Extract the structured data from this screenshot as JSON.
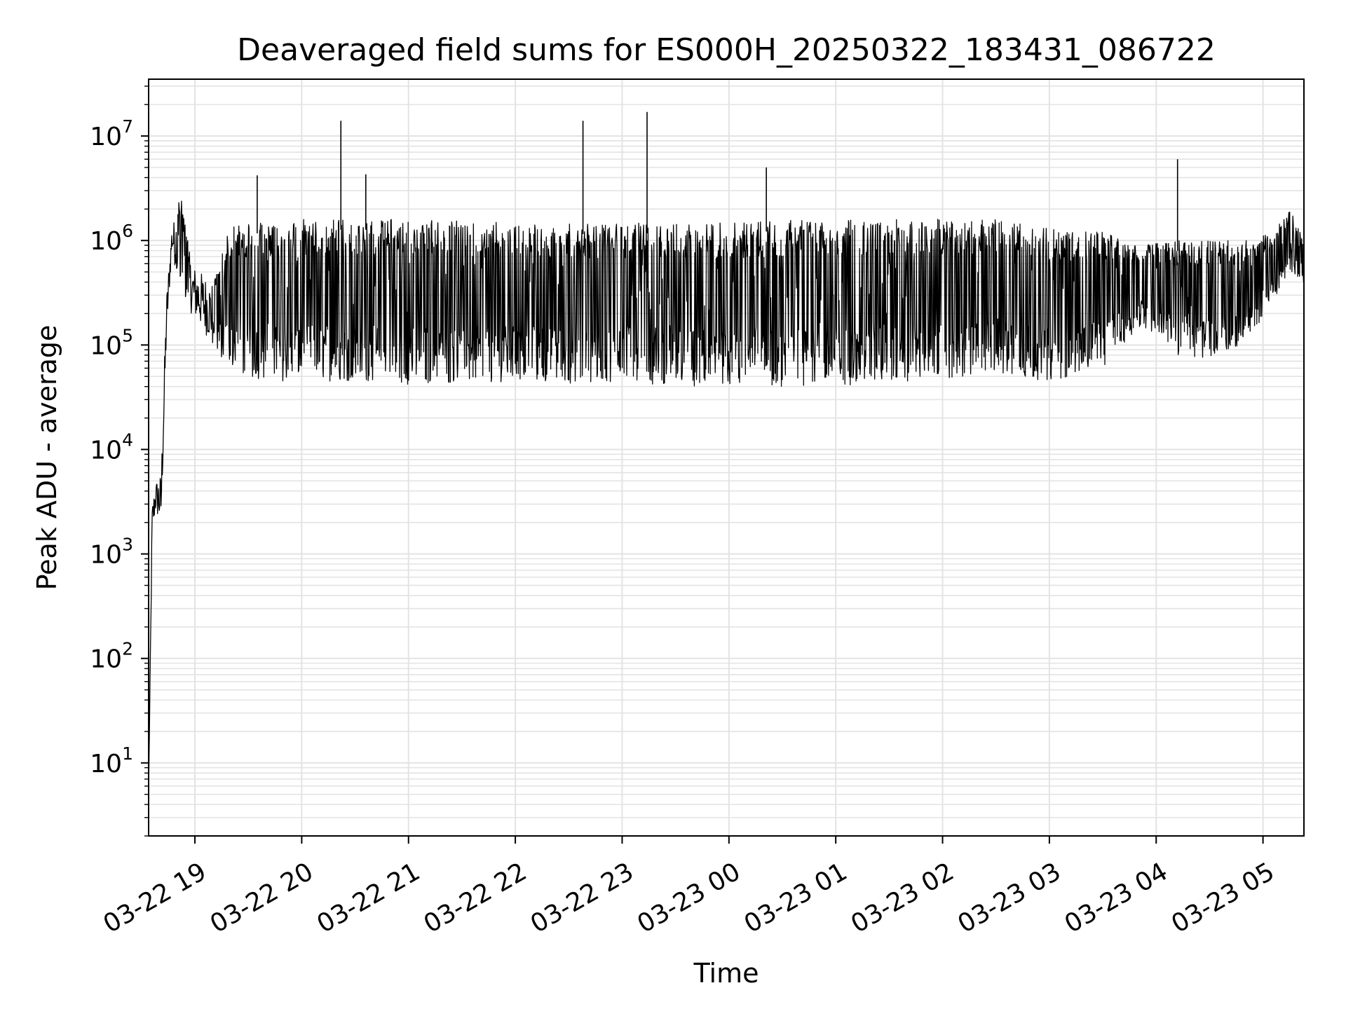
{
  "chart_data": {
    "type": "line",
    "title": "Deaveraged field sums for ES000H_20250322_183431_086722",
    "xlabel": "Time",
    "ylabel": "Peak ADU - average",
    "yscale": "log",
    "ylim": [
      2,
      35000000
    ],
    "xlim": [
      "2025-03-22 18:34",
      "2025-03-23 05:23"
    ],
    "grid": true,
    "line_color": "#000000",
    "grid_color": "#e3e3e3",
    "x_ticks": [
      {
        "t": "2025-03-22 19:00",
        "label": "03-22 19"
      },
      {
        "t": "2025-03-22 20:00",
        "label": "03-22 20"
      },
      {
        "t": "2025-03-22 21:00",
        "label": "03-22 21"
      },
      {
        "t": "2025-03-22 22:00",
        "label": "03-22 22"
      },
      {
        "t": "2025-03-22 23:00",
        "label": "03-22 23"
      },
      {
        "t": "2025-03-23 00:00",
        "label": "03-23 00"
      },
      {
        "t": "2025-03-23 01:00",
        "label": "03-23 01"
      },
      {
        "t": "2025-03-23 02:00",
        "label": "03-23 02"
      },
      {
        "t": "2025-03-23 03:00",
        "label": "03-23 03"
      },
      {
        "t": "2025-03-23 04:00",
        "label": "03-23 04"
      },
      {
        "t": "2025-03-23 05:00",
        "label": "03-23 05"
      }
    ],
    "y_ticks": [
      {
        "value": 10,
        "base": "10",
        "exp": "1"
      },
      {
        "value": 100,
        "base": "10",
        "exp": "2"
      },
      {
        "value": 1000,
        "base": "10",
        "exp": "3"
      },
      {
        "value": 10000,
        "base": "10",
        "exp": "4"
      },
      {
        "value": 100000,
        "base": "10",
        "exp": "5"
      },
      {
        "value": 1000000,
        "base": "10",
        "exp": "6"
      },
      {
        "value": 10000000,
        "base": "10",
        "exp": "7"
      }
    ],
    "series": [
      {
        "envelope": [
          {
            "t": "2025-03-22 18:34",
            "low": 5,
            "high": 5
          },
          {
            "t": "2025-03-22 18:36",
            "low": 1500,
            "high": 3000
          },
          {
            "t": "2025-03-22 18:38",
            "low": 2500,
            "high": 5000
          },
          {
            "t": "2025-03-22 18:41",
            "low": 1700,
            "high": 6000
          },
          {
            "t": "2025-03-22 18:44",
            "low": 100000,
            "high": 300000
          },
          {
            "t": "2025-03-22 18:47",
            "low": 800000,
            "high": 1300000
          },
          {
            "t": "2025-03-22 18:52",
            "low": 300000,
            "high": 2700000
          },
          {
            "t": "2025-03-22 18:58",
            "low": 200000,
            "high": 600000
          },
          {
            "t": "2025-03-22 19:10",
            "low": 100000,
            "high": 400000
          },
          {
            "t": "2025-03-22 19:20",
            "low": 55000,
            "high": 1400000
          },
          {
            "t": "2025-03-22 19:40",
            "low": 45000,
            "high": 1500000
          },
          {
            "t": "2025-03-22 20:00",
            "low": 45000,
            "high": 1600000
          },
          {
            "t": "2025-03-22 20:30",
            "low": 45000,
            "high": 1600000
          },
          {
            "t": "2025-03-22 21:00",
            "low": 42000,
            "high": 1600000
          },
          {
            "t": "2025-03-22 21:30",
            "low": 42000,
            "high": 1550000
          },
          {
            "t": "2025-03-22 22:00",
            "low": 45000,
            "high": 1500000
          },
          {
            "t": "2025-03-22 22:30",
            "low": 42000,
            "high": 1450000
          },
          {
            "t": "2025-03-22 23:00",
            "low": 45000,
            "high": 1450000
          },
          {
            "t": "2025-03-22 23:30",
            "low": 40000,
            "high": 1500000
          },
          {
            "t": "2025-03-23 00:00",
            "low": 38000,
            "high": 1500000
          },
          {
            "t": "2025-03-23 00:30",
            "low": 40000,
            "high": 1550000
          },
          {
            "t": "2025-03-23 01:00",
            "low": 40000,
            "high": 1600000
          },
          {
            "t": "2025-03-23 01:30",
            "low": 45000,
            "high": 1600000
          },
          {
            "t": "2025-03-23 02:00",
            "low": 45000,
            "high": 1600000
          },
          {
            "t": "2025-03-23 02:30",
            "low": 50000,
            "high": 1600000
          },
          {
            "t": "2025-03-23 03:00",
            "low": 45000,
            "high": 1300000
          },
          {
            "t": "2025-03-23 03:30",
            "low": 60000,
            "high": 1200000
          },
          {
            "t": "2025-03-23 03:50",
            "low": 150000,
            "high": 900000
          },
          {
            "t": "2025-03-23 04:10",
            "low": 80000,
            "high": 1000000
          },
          {
            "t": "2025-03-23 04:30",
            "low": 70000,
            "high": 1000000
          },
          {
            "t": "2025-03-23 04:50",
            "low": 100000,
            "high": 1000000
          },
          {
            "t": "2025-03-23 05:05",
            "low": 250000,
            "high": 1200000
          },
          {
            "t": "2025-03-23 05:15",
            "low": 500000,
            "high": 2000000
          },
          {
            "t": "2025-03-23 05:23",
            "low": 400000,
            "high": 1000000
          }
        ],
        "spikes": [
          {
            "t": "2025-03-22 19:35",
            "value": 4200000
          },
          {
            "t": "2025-03-22 20:22",
            "value": 14000000
          },
          {
            "t": "2025-03-22 20:36",
            "value": 4300000
          },
          {
            "t": "2025-03-22 22:38",
            "value": 14000000
          },
          {
            "t": "2025-03-22 23:14",
            "value": 17000000
          },
          {
            "t": "2025-03-23 00:21",
            "value": 5000000
          },
          {
            "t": "2025-03-23 04:12",
            "value": 6000000
          }
        ]
      }
    ]
  }
}
